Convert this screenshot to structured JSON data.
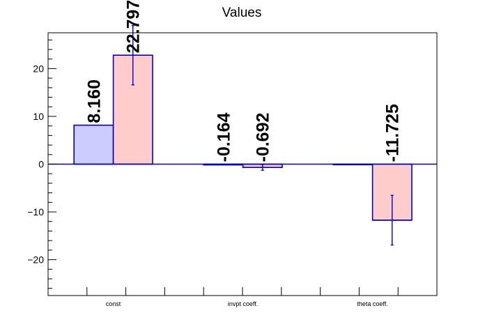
{
  "chart_data": {
    "type": "bar",
    "title": "Values",
    "xlabel": "",
    "ylabel": "",
    "ylim": [
      -27.5,
      27.5
    ],
    "yticks": [
      -20,
      -10,
      0,
      10,
      20
    ],
    "grid": false,
    "legend": "none",
    "categories": [
      "const",
      "invpt coeff.",
      "theta coeff."
    ],
    "series": [
      {
        "values": [
          8.16,
          -0.164,
          0
        ],
        "errors": [
          0,
          0,
          0
        ],
        "labels": [
          "8.160",
          "-0.164",
          ""
        ],
        "fill": "#ccccff",
        "stroke": "#0000cc"
      },
      {
        "values": [
          22.797,
          -0.692,
          -11.725
        ],
        "errors": [
          6.2,
          0.6,
          5.2
        ],
        "labels": [
          "22.797",
          "-0.692",
          "-11.725"
        ],
        "fill": "#ffcccc",
        "stroke": "#0000cc"
      }
    ],
    "colors": {
      "axis": "#000000",
      "error_bar": "#0000cc",
      "zero_line": "#0000cc"
    }
  }
}
